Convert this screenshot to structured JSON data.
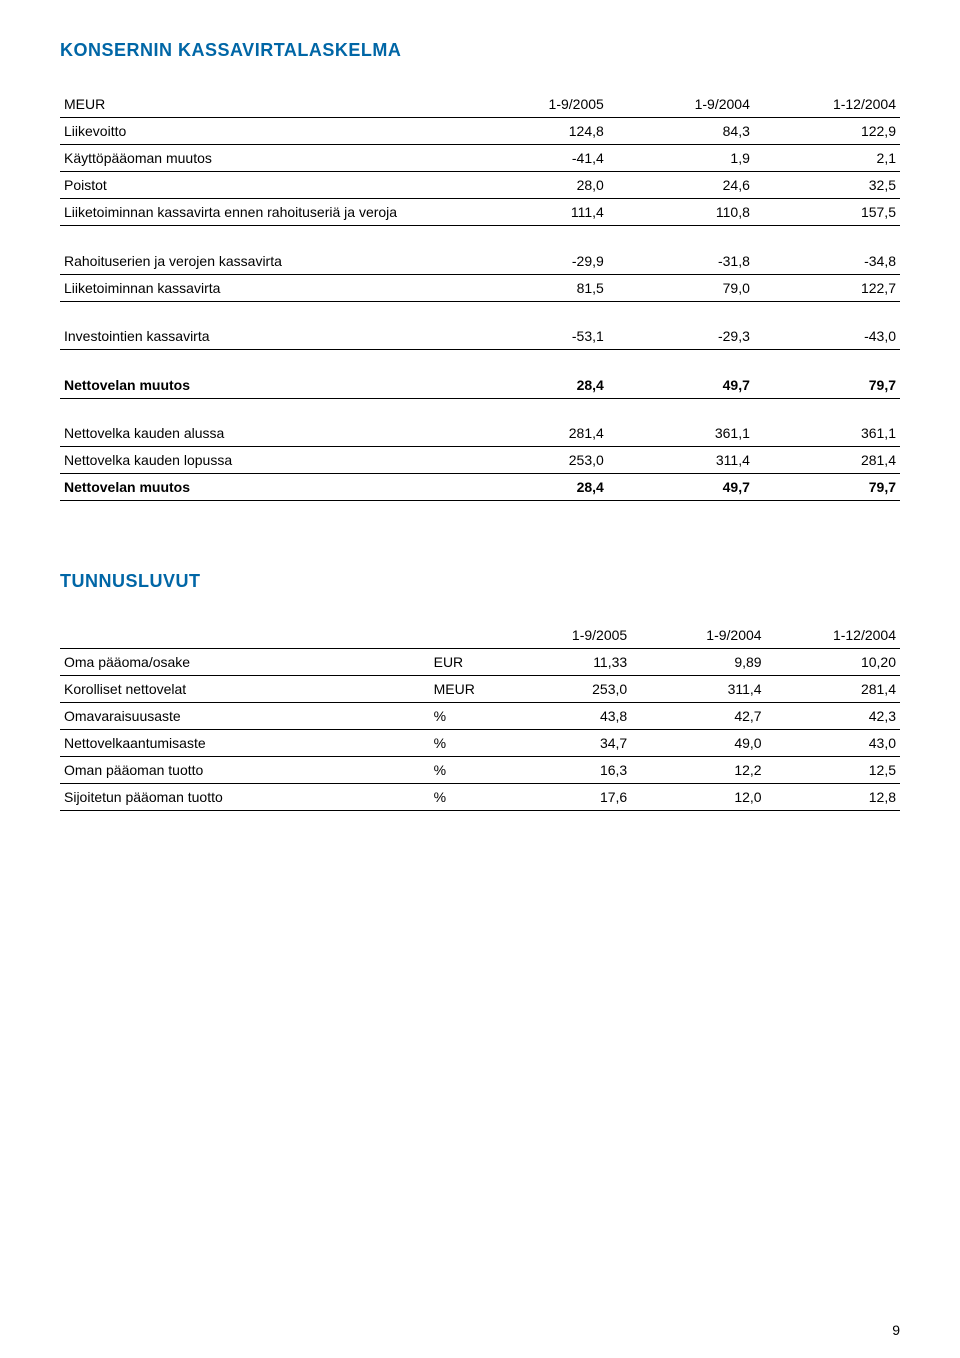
{
  "section1": {
    "title": "KONSERNIN KASSAVIRTALASKELMA",
    "header": {
      "label": "MEUR",
      "c1": "1-9/2005",
      "c2": "1-9/2004",
      "c3": "1-12/2004"
    },
    "rows_a": [
      {
        "label": "Liikevoitto",
        "v1": "124,8",
        "v2": "84,3",
        "v3": "122,9"
      },
      {
        "label": "Käyttöpääoman muutos",
        "v1": "-41,4",
        "v2": "1,9",
        "v3": "2,1"
      },
      {
        "label": "Poistot",
        "v1": "28,0",
        "v2": "24,6",
        "v3": "32,5"
      },
      {
        "label": "Liiketoiminnan kassavirta ennen rahoituseriä ja veroja",
        "v1": "111,4",
        "v2": "110,8",
        "v3": "157,5"
      }
    ],
    "rows_b": [
      {
        "label": "Rahoituserien ja verojen kassavirta",
        "v1": "-29,9",
        "v2": "-31,8",
        "v3": "-34,8"
      },
      {
        "label": "Liiketoiminnan kassavirta",
        "v1": "81,5",
        "v2": "79,0",
        "v3": "122,7"
      }
    ],
    "rows_c": [
      {
        "label": "Investointien kassavirta",
        "v1": "-53,1",
        "v2": "-29,3",
        "v3": "-43,0"
      }
    ],
    "bold_row_d": {
      "label": "Nettovelan muutos",
      "v1": "28,4",
      "v2": "49,7",
      "v3": "79,7"
    },
    "rows_e": [
      {
        "label": "Nettovelka kauden alussa",
        "v1": "281,4",
        "v2": "361,1",
        "v3": "361,1"
      },
      {
        "label": "Nettovelka kauden lopussa",
        "v1": "253,0",
        "v2": "311,4",
        "v3": "281,4"
      }
    ],
    "bold_row_f": {
      "label": "Nettovelan muutos",
      "v1": "28,4",
      "v2": "49,7",
      "v3": "79,7"
    }
  },
  "section2": {
    "title": "TUNNUSLUVUT",
    "header": {
      "label": "",
      "unit": "",
      "c1": "1-9/2005",
      "c2": "1-9/2004",
      "c3": "1-12/2004"
    },
    "rows": [
      {
        "label": "Oma pääoma/osake",
        "unit": "EUR",
        "v1": "11,33",
        "v2": "9,89",
        "v3": "10,20"
      },
      {
        "label": "Korolliset nettovelat",
        "unit": "MEUR",
        "v1": "253,0",
        "v2": "311,4",
        "v3": "281,4"
      },
      {
        "label": "Omavaraisuusaste",
        "unit": "%",
        "v1": "43,8",
        "v2": "42,7",
        "v3": "42,3"
      },
      {
        "label": "Nettovelkaantumisaste",
        "unit": "%",
        "v1": "34,7",
        "v2": "49,0",
        "v3": "43,0"
      },
      {
        "label": "Oman pääoman tuotto",
        "unit": "%",
        "v1": "16,3",
        "v2": "12,2",
        "v3": "12,5"
      },
      {
        "label": "Sijoitetun pääoman tuotto",
        "unit": "%",
        "v1": "17,6",
        "v2": "12,0",
        "v3": "12,8"
      }
    ]
  },
  "style": {
    "title_color": "#0066a6",
    "text_color": "#000000",
    "border_color": "#000000",
    "background": "#ffffff",
    "title_fontsize": 18,
    "body_fontsize": 14
  },
  "page_number": "9"
}
